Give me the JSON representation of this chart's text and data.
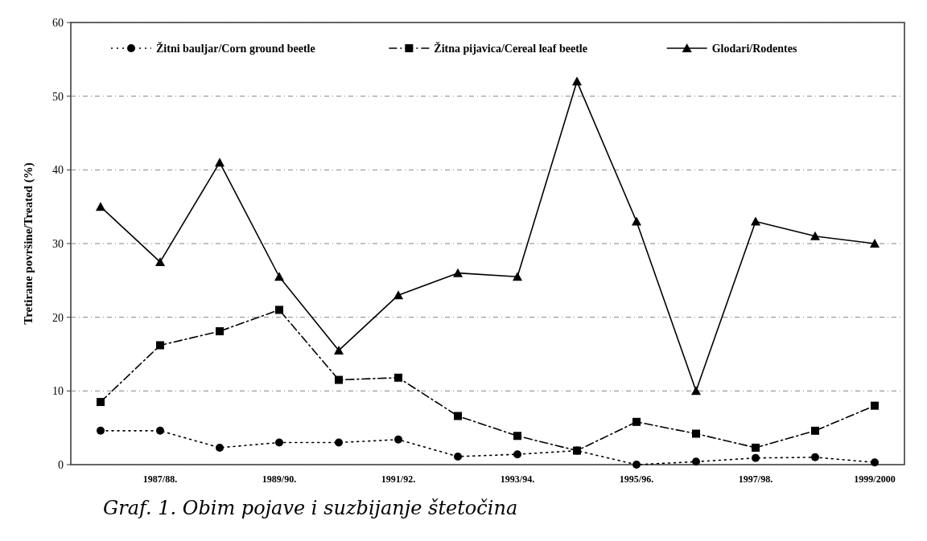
{
  "chart_data": {
    "type": "line",
    "ylabel": "Tretirane površine/Treated (%)",
    "categories": [
      null,
      "1987/88.",
      null,
      "1989/90.",
      null,
      "1991/92.",
      null,
      "1993/94.",
      null,
      "1995/96.",
      null,
      "1997/98.",
      null,
      "1999/2000"
    ],
    "series": [
      {
        "name": "Žitni bauljar/Corn ground beetle",
        "color": "#000000",
        "marker": "circle",
        "line_style": "dotted",
        "values": [
          4.6,
          4.6,
          2.3,
          3,
          3,
          3.4,
          1.1,
          1.4,
          1.9,
          0,
          0.4,
          0.9,
          1,
          0.3
        ]
      },
      {
        "name": "Žitna pijavica/Cereal leaf beetle",
        "color": "#000000",
        "marker": "square",
        "line_style": "dashed",
        "values": [
          8.5,
          16.2,
          18.1,
          21,
          11.5,
          11.8,
          6.6,
          3.9,
          1.9,
          5.8,
          4.2,
          2.3,
          4.6,
          8
        ]
      },
      {
        "name": "Glodari/Rodentes",
        "color": "#000000",
        "marker": "triangle",
        "line_style": "solid",
        "values": [
          35,
          27.5,
          41,
          25.5,
          15.5,
          23,
          26,
          25.5,
          52,
          33,
          10,
          33,
          31,
          30
        ]
      }
    ],
    "ylim": [
      0,
      60
    ],
    "yticks": [
      0,
      10,
      20,
      30,
      40,
      50,
      60
    ],
    "grid": "y",
    "legend": "top",
    "annotations": [
      "Graf. 1. Obim pojave i suzbijanje štetočina"
    ]
  }
}
